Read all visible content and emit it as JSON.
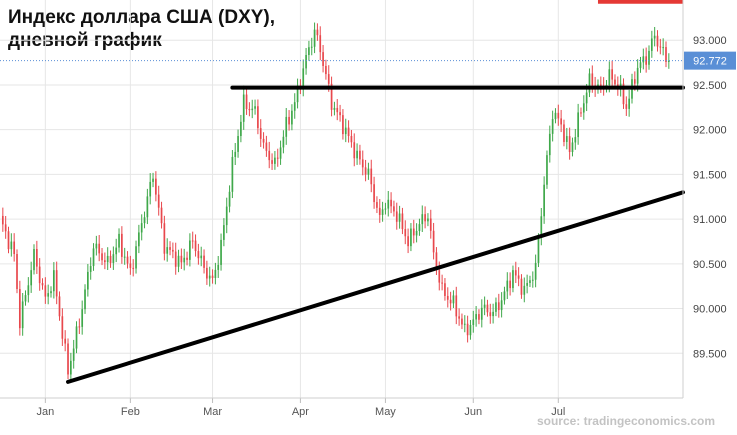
{
  "title_line1": "Индекс доллара США (DXY),",
  "title_line2": "дневной график",
  "source": "source: tradingeconomics.com",
  "chart_data": {
    "type": "candlestick",
    "y_ticks": [
      "89.500",
      "90.000",
      "90.500",
      "91.000",
      "91.500",
      "92.000",
      "92.500",
      "93.000"
    ],
    "y_tick_values": [
      89.5,
      90.0,
      90.5,
      91.0,
      91.5,
      92.0,
      92.5,
      93.0
    ],
    "ylim": [
      89.0,
      93.45
    ],
    "x_ticks": [
      "Jan",
      "Feb",
      "Mar",
      "Apr",
      "May",
      "Jun",
      "Jul"
    ],
    "x_tick_days": [
      16,
      46,
      75,
      106,
      136,
      167,
      197
    ],
    "xlim": [
      0,
      241
    ],
    "last_value": 92.772,
    "last_value_label": "92.772",
    "up_color": "#3fa84a",
    "down_color": "#e8474c",
    "accent_color": "#5a8fd6",
    "resistance_line": {
      "from": [
        82,
        92.47
      ],
      "to": [
        241,
        92.47
      ]
    },
    "support_line": {
      "from": [
        24,
        89.18
      ],
      "to": [
        241,
        91.3
      ]
    },
    "red_marker": {
      "from": [
        211,
        93.43
      ],
      "to": [
        241,
        93.43
      ]
    },
    "anchors": [
      [
        0,
        91.0
      ],
      [
        5,
        90.6
      ],
      [
        7,
        89.85
      ],
      [
        12,
        90.6
      ],
      [
        16,
        90.1
      ],
      [
        19,
        90.35
      ],
      [
        24,
        89.3
      ],
      [
        28,
        89.85
      ],
      [
        33,
        90.7
      ],
      [
        38,
        90.5
      ],
      [
        42,
        90.75
      ],
      [
        46,
        90.4
      ],
      [
        50,
        90.95
      ],
      [
        54,
        91.5
      ],
      [
        58,
        90.7
      ],
      [
        64,
        90.5
      ],
      [
        68,
        90.75
      ],
      [
        72,
        90.45
      ],
      [
        75,
        90.3
      ],
      [
        78,
        90.7
      ],
      [
        82,
        91.6
      ],
      [
        86,
        92.3
      ],
      [
        90,
        92.2
      ],
      [
        93,
        91.8
      ],
      [
        97,
        91.6
      ],
      [
        101,
        92.05
      ],
      [
        104,
        92.3
      ],
      [
        108,
        92.8
      ],
      [
        111,
        93.1
      ],
      [
        113,
        92.9
      ],
      [
        117,
        92.3
      ],
      [
        121,
        92.05
      ],
      [
        126,
        91.7
      ],
      [
        130,
        91.5
      ],
      [
        134,
        91.0
      ],
      [
        136,
        91.2
      ],
      [
        140,
        91.05
      ],
      [
        144,
        90.75
      ],
      [
        148,
        90.95
      ],
      [
        151,
        91.05
      ],
      [
        153,
        90.6
      ],
      [
        156,
        90.2
      ],
      [
        160,
        90.05
      ],
      [
        164,
        89.75
      ],
      [
        167,
        89.85
      ],
      [
        170,
        90.0
      ],
      [
        174,
        89.95
      ],
      [
        177,
        90.1
      ],
      [
        181,
        90.4
      ],
      [
        185,
        90.2
      ],
      [
        189,
        90.45
      ],
      [
        192,
        91.4
      ],
      [
        195,
        92.2
      ],
      [
        198,
        92.05
      ],
      [
        201,
        91.75
      ],
      [
        204,
        92.1
      ],
      [
        208,
        92.55
      ],
      [
        212,
        92.45
      ],
      [
        215,
        92.6
      ],
      [
        218,
        92.5
      ],
      [
        221,
        92.25
      ],
      [
        225,
        92.7
      ],
      [
        228,
        92.8
      ],
      [
        231,
        93.05
      ],
      [
        234,
        92.85
      ],
      [
        236,
        92.77
      ]
    ]
  }
}
